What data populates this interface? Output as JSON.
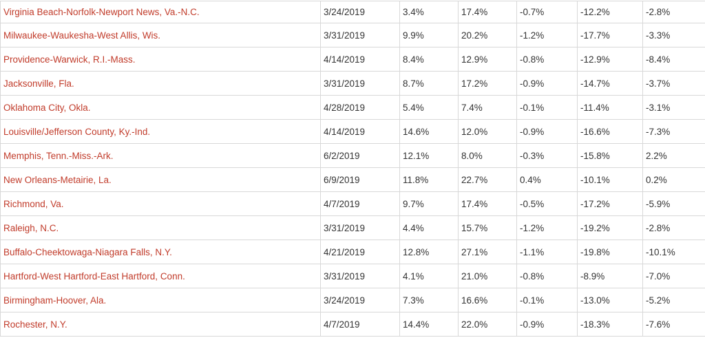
{
  "chart_data": {
    "type": "table",
    "header_visible": false,
    "rows": [
      [
        "Virginia Beach-Norfolk-Newport News, Va.-N.C.",
        "3/24/2019",
        "3.4%",
        "17.4%",
        "-0.7%",
        "-12.2%",
        "-2.8%"
      ],
      [
        "Milwaukee-Waukesha-West Allis, Wis.",
        "3/31/2019",
        "9.9%",
        "20.2%",
        "-1.2%",
        "-17.7%",
        "-3.3%"
      ],
      [
        "Providence-Warwick, R.I.-Mass.",
        "4/14/2019",
        "8.4%",
        "12.9%",
        "-0.8%",
        "-12.9%",
        "-8.4%"
      ],
      [
        "Jacksonville, Fla.",
        "3/31/2019",
        "8.7%",
        "17.2%",
        "-0.9%",
        "-14.7%",
        "-3.7%"
      ],
      [
        "Oklahoma City, Okla.",
        "4/28/2019",
        "5.4%",
        "7.4%",
        "-0.1%",
        "-11.4%",
        "-3.1%"
      ],
      [
        "Louisville/Jefferson County, Ky.-Ind.",
        "4/14/2019",
        "14.6%",
        "12.0%",
        "-0.9%",
        "-16.6%",
        "-7.3%"
      ],
      [
        "Memphis, Tenn.-Miss.-Ark.",
        "6/2/2019",
        "12.1%",
        "8.0%",
        "-0.3%",
        "-15.8%",
        "2.2%"
      ],
      [
        "New Orleans-Metairie, La.",
        "6/9/2019",
        "11.8%",
        "22.7%",
        "0.4%",
        "-10.1%",
        "0.2%"
      ],
      [
        "Richmond, Va.",
        "4/7/2019",
        "9.7%",
        "17.4%",
        "-0.5%",
        "-17.2%",
        "-5.9%"
      ],
      [
        "Raleigh, N.C.",
        "3/31/2019",
        "4.4%",
        "15.7%",
        "-1.2%",
        "-19.2%",
        "-2.8%"
      ],
      [
        "Buffalo-Cheektowaga-Niagara Falls, N.Y.",
        "4/21/2019",
        "12.8%",
        "27.1%",
        "-1.1%",
        "-19.8%",
        "-10.1%"
      ],
      [
        "Hartford-West Hartford-East Hartford, Conn.",
        "3/31/2019",
        "4.1%",
        "21.0%",
        "-0.8%",
        "-8.9%",
        "-7.0%"
      ],
      [
        "Birmingham-Hoover, Ala.",
        "3/24/2019",
        "7.3%",
        "16.6%",
        "-0.1%",
        "-13.0%",
        "-5.2%"
      ],
      [
        "Rochester, N.Y.",
        "4/7/2019",
        "14.4%",
        "22.0%",
        "-0.9%",
        "-18.3%",
        "-7.6%"
      ]
    ]
  },
  "colors": {
    "metro_link_red": "#c13b2a",
    "value_text": "#333333",
    "grid_border": "#d8d8d8",
    "background": "#ffffff"
  }
}
